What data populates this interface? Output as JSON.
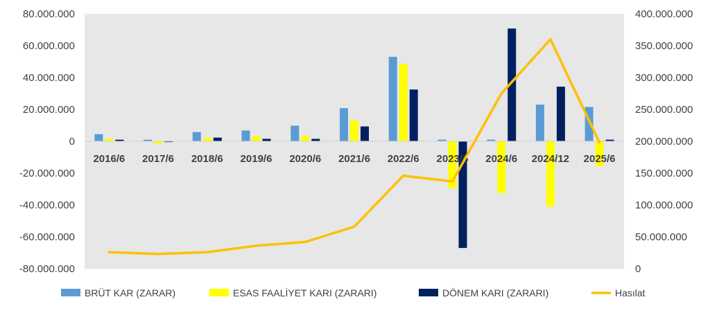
{
  "chart_data": {
    "type": "bar",
    "categories": [
      "2016/6",
      "2017/6",
      "2018/6",
      "2019/6",
      "2020/6",
      "2021/6",
      "2022/6",
      "2023/6",
      "2024/6",
      "2024/12",
      "2025/6"
    ],
    "series": [
      {
        "name": "BRÜT KAR (ZARAR)",
        "type": "bar",
        "axis": "left",
        "color": "#5B9BD5",
        "values": [
          4500000,
          1000000,
          5800000,
          6800000,
          9800000,
          20800000,
          53000000,
          1000000,
          1000000,
          23000000,
          21500000
        ]
      },
      {
        "name": "ESAS FAALİYET KARI (ZARARI)",
        "type": "bar",
        "axis": "left",
        "color": "#FFFF00",
        "values": [
          1500000,
          -1500000,
          2200000,
          3200000,
          3400000,
          13200000,
          48500000,
          -29500000,
          -32500000,
          -41000000,
          -15500000
        ]
      },
      {
        "name": "DÖNEM KARI (ZARARI)",
        "type": "bar",
        "axis": "left",
        "color": "#002060",
        "values": [
          1000000,
          -500000,
          2300000,
          1500000,
          1500000,
          9300000,
          32500000,
          -67000000,
          70800000,
          34300000,
          1000000
        ]
      },
      {
        "name": "Hasılat",
        "type": "line",
        "axis": "right",
        "color": "#FFC000",
        "values": [
          26000000,
          23000000,
          26000000,
          36000000,
          42000000,
          66000000,
          146000000,
          137000000,
          275000000,
          360000000,
          198000000
        ]
      }
    ],
    "y_left": {
      "min": -80000000,
      "max": 80000000,
      "step": 20000000,
      "tick_labels": [
        "-80.000.000",
        "-60.000.000",
        "-40.000.000",
        "-20.000.000",
        "0",
        "20.000.000",
        "40.000.000",
        "60.000.000",
        "80.000.000"
      ]
    },
    "y_right": {
      "min": 0,
      "max": 400000000,
      "step": 50000000,
      "tick_labels": [
        "0",
        "50.000.000",
        "100.000.000",
        "150.000.000",
        "200.000.000",
        "250.000.000",
        "300.000.000",
        "350.000.000",
        "400.000.000"
      ]
    },
    "legend_position": "bottom",
    "plot_background": "#E7E7E7",
    "grid": false
  }
}
